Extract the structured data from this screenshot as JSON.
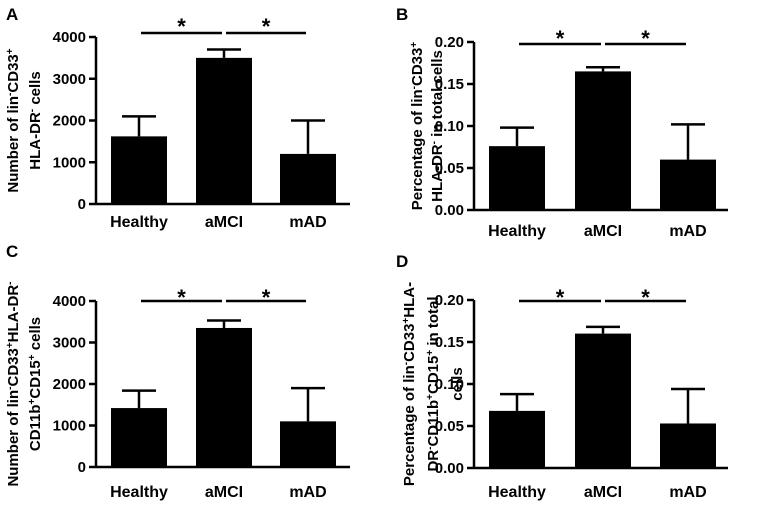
{
  "chart_data": [
    {
      "panel": "A",
      "type": "bar",
      "categories": [
        "Healthy",
        "aMCI",
        "mAD"
      ],
      "values": [
        1620,
        3500,
        1200
      ],
      "errors": [
        480,
        200,
        800
      ],
      "ylim": [
        0,
        4000
      ],
      "ticks": [
        0,
        1000,
        2000,
        3000,
        4000
      ],
      "tick_labels": [
        "0",
        "1000",
        "2000",
        "3000",
        "4000"
      ],
      "ylabel_lines": [
        [
          {
            "t": "Number of lin"
          },
          {
            "t": "-",
            "sup": true
          },
          {
            "t": "CD33"
          },
          {
            "t": "+",
            "sup": true
          }
        ],
        [
          {
            "t": "HLA-DR"
          },
          {
            "t": "-",
            "sup": true
          },
          {
            "t": " cells"
          }
        ]
      ],
      "significance": [
        "*",
        "*"
      ]
    },
    {
      "panel": "B",
      "type": "bar",
      "categories": [
        "Healthy",
        "aMCI",
        "mAD"
      ],
      "values": [
        0.076,
        0.165,
        0.06
      ],
      "errors": [
        0.022,
        0.005,
        0.042
      ],
      "ylim": [
        0,
        0.2
      ],
      "ticks": [
        0,
        0.05,
        0.1,
        0.15,
        0.2
      ],
      "tick_labels": [
        "0.00",
        "0.05",
        "0.10",
        "0.15",
        "0.20"
      ],
      "ylabel_lines": [
        [
          {
            "t": "Percentage of lin"
          },
          {
            "t": "-",
            "sup": true
          },
          {
            "t": "CD33"
          },
          {
            "t": "+",
            "sup": true
          }
        ],
        [
          {
            "t": "HLA-DR"
          },
          {
            "t": "-",
            "sup": true
          },
          {
            "t": " in total cells"
          }
        ]
      ],
      "significance": [
        "*",
        "*"
      ]
    },
    {
      "panel": "C",
      "type": "bar",
      "categories": [
        "Healthy",
        "aMCI",
        "mAD"
      ],
      "values": [
        1420,
        3350,
        1100
      ],
      "errors": [
        420,
        180,
        800
      ],
      "ylim": [
        0,
        4000
      ],
      "ticks": [
        0,
        1000,
        2000,
        3000,
        4000
      ],
      "tick_labels": [
        "0",
        "1000",
        "2000",
        "3000",
        "4000"
      ],
      "ylabel_lines": [
        [
          {
            "t": "Number of lin"
          },
          {
            "t": "-",
            "sup": true
          },
          {
            "t": "CD33"
          },
          {
            "t": "+",
            "sup": true
          },
          {
            "t": "HLA-DR"
          },
          {
            "t": "-",
            "sup": true
          }
        ],
        [
          {
            "t": "CD11b"
          },
          {
            "t": "+",
            "sup": true
          },
          {
            "t": "CD15"
          },
          {
            "t": "+",
            "sup": true
          },
          {
            "t": " cells"
          }
        ]
      ],
      "significance": [
        "*",
        "*"
      ]
    },
    {
      "panel": "D",
      "type": "bar",
      "categories": [
        "Healthy",
        "aMCI",
        "mAD"
      ],
      "values": [
        0.068,
        0.16,
        0.053
      ],
      "errors": [
        0.02,
        0.008,
        0.041
      ],
      "ylim": [
        0,
        0.2
      ],
      "ticks": [
        0,
        0.05,
        0.1,
        0.15,
        0.2
      ],
      "tick_labels": [
        "0.00",
        "0.05",
        "0.10",
        "0.15",
        "0.20"
      ],
      "ylabel_lines": [
        [
          {
            "t": "Percentage of lin"
          },
          {
            "t": "-",
            "sup": true
          },
          {
            "t": "CD33"
          },
          {
            "t": "+",
            "sup": true
          },
          {
            "t": "HLA-"
          }
        ],
        [
          {
            "t": "DR"
          },
          {
            "t": "-",
            "sup": true
          },
          {
            "t": "CD11b"
          },
          {
            "t": "+",
            "sup": true
          },
          {
            "t": "CD15"
          },
          {
            "t": "+",
            "sup": true
          },
          {
            "t": " in total"
          }
        ],
        [
          {
            "t": "cells"
          }
        ]
      ],
      "significance": [
        "*",
        "*"
      ]
    }
  ]
}
